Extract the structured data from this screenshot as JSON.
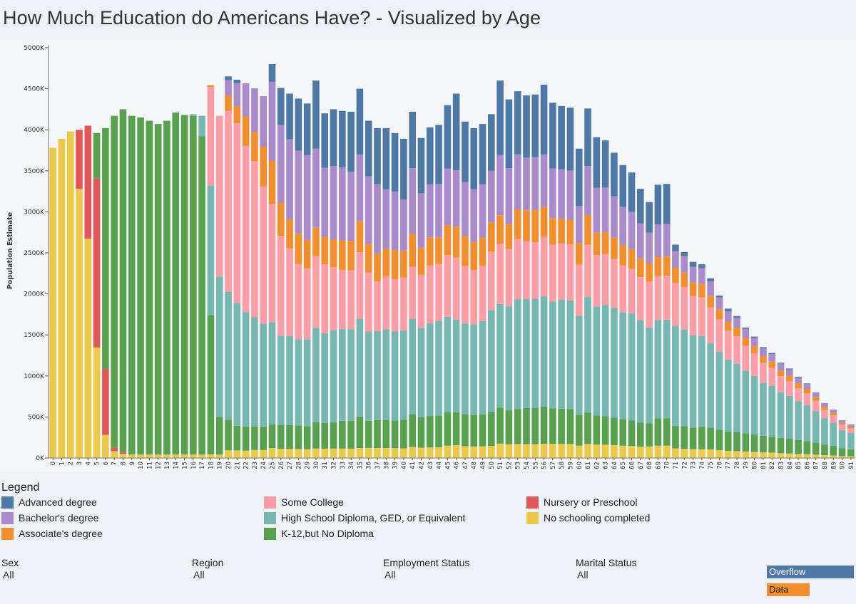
{
  "title": "How Much Education do Americans Have? - Visualized by Age",
  "legend_title": "Legend",
  "legend": [
    {
      "label": "Advanced degree",
      "color": "#4e79a7"
    },
    {
      "label": "Bachelor's degree",
      "color": "#a98acb"
    },
    {
      "label": "Associate's degree",
      "color": "#f28e2b"
    },
    {
      "label": "Some College",
      "color": "#ff9da7"
    },
    {
      "label": "High School Diploma, GED, or Equivalent",
      "color": "#76b7b2"
    },
    {
      "label": "K-12,but No Diploma",
      "color": "#59a14f"
    },
    {
      "label": "Nursery or Preschool",
      "color": "#e15759"
    },
    {
      "label": "No schooling completed",
      "color": "#edc948"
    }
  ],
  "filters": [
    {
      "label": "Sex",
      "value": "All"
    },
    {
      "label": "Region",
      "value": "All"
    },
    {
      "label": "Employment Status",
      "value": "All"
    },
    {
      "label": "Marital Status",
      "value": "All"
    }
  ],
  "buttons": {
    "overflow": {
      "label": "Overflow",
      "color": "#4e79a7"
    },
    "data": {
      "label": "Data",
      "color": "#f28e2b"
    }
  },
  "chart_data": {
    "type": "bar",
    "stacked": true,
    "title": "How Much Education do Americans Have? - Visualized by Age",
    "xlabel": "",
    "ylabel": "Population Estimate",
    "ylim": [
      0,
      5000
    ],
    "y_unit_suffix": "K",
    "yticks": [
      0,
      500,
      1000,
      1500,
      2000,
      2500,
      3000,
      3500,
      4000,
      4500,
      5000
    ],
    "series_order": [
      "No schooling completed",
      "Nursery or Preschool",
      "K-12,but No Diploma",
      "High School Diploma, GED, or Equivalent",
      "Some College",
      "Associate's degree",
      "Bachelor's degree",
      "Advanced degree"
    ],
    "totals": [
      3780,
      3890,
      3980,
      4000,
      4050,
      3960,
      4020,
      4170,
      4250,
      4170,
      4150,
      4110,
      4070,
      4110,
      4210,
      4180,
      4190,
      4170,
      4520,
      4170,
      4650,
      4610,
      4500,
      4430,
      4400,
      4800,
      4510,
      4440,
      4380,
      4320,
      4600,
      4200,
      4250,
      4230,
      4220,
      4500,
      4110,
      4020,
      4020,
      3960,
      3890,
      4220,
      3900,
      4030,
      4060,
      4300,
      4440,
      4100,
      4020,
      4070,
      4190,
      4600,
      4370,
      4470,
      4420,
      4430,
      4550,
      4330,
      4290,
      4270,
      3770,
      4260,
      3910,
      3870,
      3720,
      3570,
      3480,
      3280,
      3120,
      3330,
      3340,
      2600,
      2510,
      2390,
      2360,
      2190,
      1980,
      1820,
      1730,
      1590,
      1480,
      1350,
      1280,
      1160,
      1090,
      990,
      910,
      800,
      670,
      590,
      460,
      410
    ],
    "pct_no_school": [
      1,
      1,
      1,
      0.82,
      0.66,
      0.34,
      0.07,
      0.02,
      0.012,
      0.01,
      0.01,
      0.01,
      0.01,
      0.01,
      0.01,
      0.01,
      0.01,
      0.01,
      0.01,
      0.01,
      0.02,
      0.02,
      0.02,
      0.022,
      0.022,
      0.025,
      0.025,
      0.025,
      0.025,
      0.025,
      0.025,
      0.027,
      0.027,
      0.027,
      0.027,
      0.027,
      0.03,
      0.03,
      0.03,
      0.03,
      0.03,
      0.032,
      0.032,
      0.032,
      0.032,
      0.035,
      0.035,
      0.035,
      0.035,
      0.035,
      0.035,
      0.038,
      0.038,
      0.038,
      0.038,
      0.038,
      0.038,
      0.04,
      0.04,
      0.04,
      0.04,
      0.04,
      0.042,
      0.042,
      0.042,
      0.042,
      0.042,
      0.042,
      0.045,
      0.045,
      0.045,
      0.045,
      0.045,
      0.045,
      0.045,
      0.048,
      0.048,
      0.048,
      0.048,
      0.05,
      0.05,
      0.05,
      0.05,
      0.05,
      0.05,
      0.05,
      0.05,
      0.05,
      0.05,
      0.05,
      0.05,
      0.05
    ],
    "pct_preschool": [
      0,
      0,
      0,
      0.18,
      0.34,
      0.52,
      0.2,
      0.01,
      0.005,
      0,
      0,
      0,
      0,
      0,
      0,
      0,
      0,
      0,
      0,
      0,
      0,
      0,
      0,
      0,
      0,
      0,
      0,
      0,
      0,
      0,
      0,
      0,
      0,
      0,
      0,
      0,
      0,
      0,
      0,
      0,
      0,
      0,
      0,
      0,
      0,
      0,
      0,
      0,
      0,
      0,
      0,
      0,
      0,
      0,
      0,
      0,
      0,
      0,
      0,
      0,
      0,
      0,
      0,
      0,
      0,
      0,
      0,
      0,
      0,
      0,
      0,
      0,
      0,
      0,
      0,
      0,
      0,
      0,
      0,
      0,
      0,
      0,
      0,
      0,
      0,
      0,
      0,
      0,
      0,
      0,
      0,
      0
    ],
    "pct_k12": [
      0,
      0,
      0,
      0,
      0,
      0.14,
      0.73,
      0.97,
      0.983,
      0.99,
      0.99,
      0.99,
      0.99,
      0.99,
      0.99,
      0.99,
      0.985,
      0.93,
      0.375,
      0.11,
      0.08,
      0.065,
      0.065,
      0.065,
      0.065,
      0.06,
      0.065,
      0.065,
      0.065,
      0.065,
      0.07,
      0.075,
      0.075,
      0.08,
      0.08,
      0.085,
      0.08,
      0.085,
      0.085,
      0.085,
      0.09,
      0.095,
      0.095,
      0.095,
      0.095,
      0.095,
      0.09,
      0.095,
      0.095,
      0.095,
      0.1,
      0.095,
      0.095,
      0.095,
      0.1,
      0.1,
      0.1,
      0.1,
      0.1,
      0.1,
      0.1,
      0.09,
      0.09,
      0.09,
      0.09,
      0.09,
      0.09,
      0.09,
      0.09,
      0.1,
      0.1,
      0.105,
      0.11,
      0.11,
      0.115,
      0.12,
      0.125,
      0.13,
      0.135,
      0.14,
      0.145,
      0.15,
      0.155,
      0.16,
      0.165,
      0.17,
      0.175,
      0.185,
      0.195,
      0.2,
      0.205,
      0.21
    ],
    "pct_hs": [
      0,
      0,
      0,
      0,
      0,
      0,
      0,
      0,
      0,
      0,
      0,
      0,
      0,
      0,
      0,
      0,
      0.005,
      0.06,
      0.35,
      0.41,
      0.335,
      0.325,
      0.31,
      0.3,
      0.285,
      0.26,
      0.24,
      0.245,
      0.24,
      0.245,
      0.25,
      0.26,
      0.265,
      0.265,
      0.265,
      0.265,
      0.265,
      0.27,
      0.275,
      0.275,
      0.28,
      0.275,
      0.28,
      0.28,
      0.285,
      0.27,
      0.255,
      0.27,
      0.275,
      0.28,
      0.295,
      0.275,
      0.29,
      0.3,
      0.3,
      0.3,
      0.295,
      0.3,
      0.31,
      0.31,
      0.32,
      0.33,
      0.34,
      0.35,
      0.36,
      0.365,
      0.375,
      0.38,
      0.375,
      0.36,
      0.36,
      0.47,
      0.47,
      0.47,
      0.47,
      0.47,
      0.48,
      0.48,
      0.48,
      0.48,
      0.48,
      0.48,
      0.48,
      0.48,
      0.48,
      0.48,
      0.48,
      0.48,
      0.48,
      0.48,
      0.48,
      0.48
    ],
    "pct_some_college": [
      0,
      0,
      0,
      0,
      0,
      0,
      0,
      0,
      0,
      0,
      0,
      0,
      0,
      0,
      0,
      0,
      0,
      0,
      0.265,
      0.47,
      0.475,
      0.475,
      0.45,
      0.43,
      0.38,
      0.3,
      0.27,
      0.24,
      0.21,
      0.2,
      0.19,
      0.2,
      0.18,
      0.17,
      0.17,
      0.18,
      0.175,
      0.15,
      0.16,
      0.16,
      0.165,
      0.15,
      0.165,
      0.175,
      0.17,
      0.175,
      0.17,
      0.17,
      0.165,
      0.165,
      0.17,
      0.16,
      0.16,
      0.165,
      0.16,
      0.155,
      0.16,
      0.16,
      0.16,
      0.16,
      0.165,
      0.15,
      0.16,
      0.16,
      0.16,
      0.16,
      0.155,
      0.16,
      0.18,
      0.16,
      0.16,
      0.2,
      0.205,
      0.2,
      0.2,
      0.2,
      0.2,
      0.195,
      0.195,
      0.19,
      0.185,
      0.18,
      0.175,
      0.17,
      0.165,
      0.16,
      0.16,
      0.155,
      0.15,
      0.15,
      0.145,
      0.14
    ],
    "pct_associate": [
      0,
      0,
      0,
      0,
      0,
      0,
      0,
      0,
      0,
      0,
      0,
      0,
      0,
      0,
      0,
      0,
      0,
      0,
      0.005,
      0,
      0.04,
      0.045,
      0.08,
      0.08,
      0.11,
      0.11,
      0.09,
      0.08,
      0.085,
      0.08,
      0.075,
      0.08,
      0.08,
      0.085,
      0.085,
      0.085,
      0.085,
      0.085,
      0.085,
      0.09,
      0.085,
      0.095,
      0.085,
      0.085,
      0.08,
      0.085,
      0.085,
      0.09,
      0.085,
      0.085,
      0.085,
      0.075,
      0.07,
      0.08,
      0.085,
      0.09,
      0.08,
      0.075,
      0.07,
      0.07,
      0.07,
      0.085,
      0.07,
      0.07,
      0.07,
      0.07,
      0.07,
      0.07,
      0.07,
      0.07,
      0.07,
      0.07,
      0.07,
      0.07,
      0.07,
      0.065,
      0.065,
      0.06,
      0.06,
      0.06,
      0.06,
      0.06,
      0.06,
      0.06,
      0.06,
      0.06,
      0.06,
      0.055,
      0.055,
      0.05,
      0.05,
      0.05
    ],
    "pct_bachelor": [
      0,
      0,
      0,
      0,
      0,
      0,
      0,
      0,
      0,
      0,
      0,
      0,
      0,
      0,
      0,
      0,
      0,
      0,
      0,
      0,
      0.04,
      0.06,
      0.09,
      0.12,
      0.14,
      0.2,
      0.21,
      0.22,
      0.23,
      0.24,
      0.21,
      0.2,
      0.21,
      0.21,
      0.2,
      0.18,
      0.2,
      0.21,
      0.18,
      0.18,
      0.16,
      0.19,
      0.17,
      0.16,
      0.16,
      0.16,
      0.155,
      0.16,
      0.16,
      0.16,
      0.15,
      0.16,
      0.155,
      0.15,
      0.145,
      0.145,
      0.14,
      0.14,
      0.14,
      0.14,
      0.12,
      0.14,
      0.14,
      0.14,
      0.135,
      0.13,
      0.13,
      0.13,
      0.12,
      0.12,
      0.12,
      0.08,
      0.08,
      0.08,
      0.08,
      0.08,
      0.07,
      0.07,
      0.07,
      0.07,
      0.07,
      0.07,
      0.07,
      0.07,
      0.07,
      0.07,
      0.07,
      0.07,
      0.07,
      0.07,
      0.07,
      0.07
    ]
  }
}
